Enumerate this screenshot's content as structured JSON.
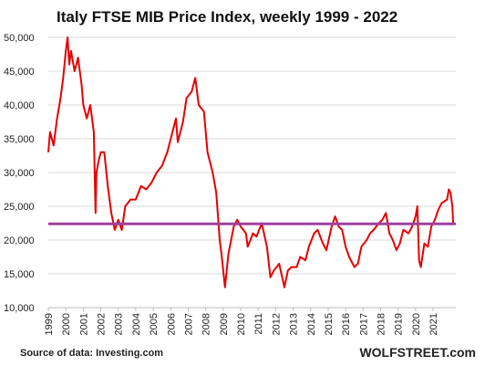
{
  "chart_data": {
    "type": "line",
    "title": "Italy FTSE MIB Price Index, weekly 1999 - 2022",
    "source": "Source of data: Investing.com",
    "credit": "WOLFSTREET.com",
    "xlim": [
      1999,
      2022.3
    ],
    "xticks": [
      1999,
      2000,
      2001,
      2002,
      2003,
      2004,
      2005,
      2006,
      2007,
      2008,
      2009,
      2010,
      2011,
      2012,
      2013,
      2014,
      2015,
      2016,
      2017,
      2018,
      2019,
      2020,
      2021
    ],
    "ylim": [
      10000,
      50000
    ],
    "yticks": [
      {
        "value": 10000,
        "label": "10,000"
      },
      {
        "value": 15000,
        "label": "15,000"
      },
      {
        "value": 20000,
        "label": "20,000"
      },
      {
        "value": 25000,
        "label": "25,000"
      },
      {
        "value": 30000,
        "label": "30,000"
      },
      {
        "value": 35000,
        "label": "35,000"
      },
      {
        "value": 40000,
        "label": "40,000"
      },
      {
        "value": 45000,
        "label": "45,000"
      },
      {
        "value": 50000,
        "label": "50,000"
      }
    ],
    "grid": true,
    "reference_line": {
      "value": 22400,
      "color": "#a040a0"
    },
    "x": [
      1999.0,
      1999.1,
      1999.3,
      1999.5,
      1999.7,
      1999.85,
      2000.0,
      2000.1,
      2000.2,
      2000.3,
      2000.5,
      2000.7,
      2000.9,
      2001.0,
      2001.2,
      2001.4,
      2001.6,
      2001.7,
      2001.75,
      2001.9,
      2002.0,
      2002.2,
      2002.4,
      2002.6,
      2002.8,
      2003.0,
      2003.2,
      2003.4,
      2003.7,
      2004.0,
      2004.3,
      2004.6,
      2004.9,
      2005.2,
      2005.5,
      2005.8,
      2006.0,
      2006.3,
      2006.4,
      2006.7,
      2006.9,
      2007.2,
      2007.4,
      2007.6,
      2007.9,
      2008.1,
      2008.4,
      2008.6,
      2008.8,
      2008.9,
      2009.1,
      2009.3,
      2009.6,
      2009.8,
      2010.0,
      2010.3,
      2010.4,
      2010.7,
      2010.9,
      2011.2,
      2011.5,
      2011.7,
      2011.9,
      2012.2,
      2012.5,
      2012.7,
      2012.9,
      2013.2,
      2013.4,
      2013.7,
      2013.9,
      2014.2,
      2014.4,
      2014.7,
      2014.9,
      2015.2,
      2015.4,
      2015.6,
      2015.8,
      2016.0,
      2016.2,
      2016.5,
      2016.7,
      2016.9,
      2017.2,
      2017.4,
      2017.6,
      2017.9,
      2018.1,
      2018.3,
      2018.5,
      2018.7,
      2018.9,
      2019.1,
      2019.3,
      2019.6,
      2019.8,
      2020.0,
      2020.1,
      2020.2,
      2020.3,
      2020.5,
      2020.7,
      2020.9,
      2021.1,
      2021.3,
      2021.5,
      2021.8,
      2021.9,
      2022.0,
      2022.1,
      2022.15
    ],
    "series": [
      {
        "name": "FTSE MIB",
        "color": "#e60000",
        "values": [
          33000,
          36000,
          34000,
          38000,
          41000,
          44000,
          48000,
          50000,
          46000,
          48000,
          45000,
          47000,
          43000,
          40000,
          38000,
          40000,
          36000,
          24000,
          30000,
          32000,
          33000,
          33000,
          28000,
          24000,
          21500,
          23000,
          21500,
          25000,
          26000,
          26000,
          28000,
          27500,
          28500,
          30000,
          31000,
          33000,
          35000,
          38000,
          34500,
          37500,
          41000,
          42000,
          44000,
          40000,
          39000,
          33000,
          30000,
          27000,
          20000,
          18000,
          13000,
          18000,
          22000,
          23000,
          22000,
          21000,
          19000,
          21000,
          20500,
          22500,
          19000,
          14500,
          15500,
          16500,
          13000,
          15500,
          16000,
          16000,
          17500,
          17000,
          19000,
          21000,
          21500,
          19500,
          18500,
          22000,
          23500,
          22000,
          21500,
          19000,
          17500,
          16000,
          16500,
          19000,
          20000,
          21000,
          21500,
          22500,
          23000,
          24000,
          21000,
          20000,
          18500,
          19500,
          21500,
          21000,
          22000,
          23500,
          25000,
          17000,
          16000,
          19500,
          19000,
          22000,
          23000,
          24500,
          25500,
          26000,
          27500,
          27000,
          25000,
          22500
        ]
      }
    ]
  }
}
